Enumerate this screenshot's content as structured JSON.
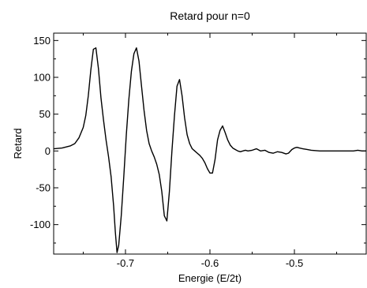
{
  "chart_data": {
    "type": "line",
    "title": "Retard pour n=0",
    "xlabel": "Energie (E/2t)",
    "ylabel": "Retard",
    "xlim": [
      -0.785,
      -0.415
    ],
    "ylim": [
      -140,
      160
    ],
    "x_ticks": [
      -0.7,
      -0.6,
      -0.5
    ],
    "x_tick_labels": [
      "-0.7",
      "-0.6",
      "-0.5"
    ],
    "y_ticks": [
      -100,
      -50,
      0,
      50,
      100,
      150
    ],
    "y_tick_labels": [
      "-100",
      "-50",
      "0",
      "50",
      "100",
      "150"
    ],
    "grid": false,
    "legend": "none",
    "line_color": "#000000",
    "series": [
      {
        "x": [
          -0.785,
          -0.775,
          -0.765,
          -0.76,
          -0.755,
          -0.75,
          -0.747,
          -0.744,
          -0.741,
          -0.738,
          -0.735,
          -0.732,
          -0.729,
          -0.726,
          -0.723,
          -0.72,
          -0.717,
          -0.714,
          -0.712,
          -0.71,
          -0.708,
          -0.705,
          -0.702,
          -0.699,
          -0.696,
          -0.693,
          -0.69,
          -0.687,
          -0.684,
          -0.681,
          -0.678,
          -0.675,
          -0.672,
          -0.669,
          -0.666,
          -0.663,
          -0.66,
          -0.657,
          -0.654,
          -0.651,
          -0.648,
          -0.645,
          -0.642,
          -0.639,
          -0.636,
          -0.633,
          -0.63,
          -0.627,
          -0.624,
          -0.621,
          -0.618,
          -0.615,
          -0.612,
          -0.609,
          -0.606,
          -0.603,
          -0.6,
          -0.597,
          -0.594,
          -0.591,
          -0.588,
          -0.585,
          -0.582,
          -0.579,
          -0.576,
          -0.573,
          -0.57,
          -0.567,
          -0.564,
          -0.561,
          -0.558,
          -0.555,
          -0.55,
          -0.545,
          -0.54,
          -0.535,
          -0.53,
          -0.525,
          -0.52,
          -0.515,
          -0.51,
          -0.507,
          -0.503,
          -0.5,
          -0.497,
          -0.494,
          -0.49,
          -0.485,
          -0.48,
          -0.47,
          -0.46,
          -0.45,
          -0.44,
          -0.43,
          -0.425,
          -0.42,
          -0.415
        ],
        "y": [
          3,
          4,
          7,
          10,
          18,
          32,
          48,
          75,
          110,
          138,
          140,
          112,
          72,
          42,
          15,
          -8,
          -35,
          -75,
          -110,
          -138,
          -128,
          -88,
          -35,
          22,
          70,
          108,
          132,
          140,
          122,
          88,
          55,
          28,
          10,
          0,
          -8,
          -18,
          -32,
          -55,
          -88,
          -95,
          -55,
          0,
          48,
          88,
          97,
          75,
          45,
          22,
          10,
          3,
          0,
          -3,
          -6,
          -10,
          -16,
          -24,
          -30,
          -30,
          -12,
          15,
          28,
          34,
          25,
          15,
          8,
          4,
          2,
          0,
          -1,
          0,
          1,
          0,
          1,
          3,
          0,
          1,
          -2,
          -3,
          -1,
          -2,
          -4,
          -3,
          2,
          4,
          5,
          4,
          3,
          2,
          1,
          0,
          0,
          0,
          0,
          0,
          1,
          0,
          0
        ]
      }
    ]
  }
}
